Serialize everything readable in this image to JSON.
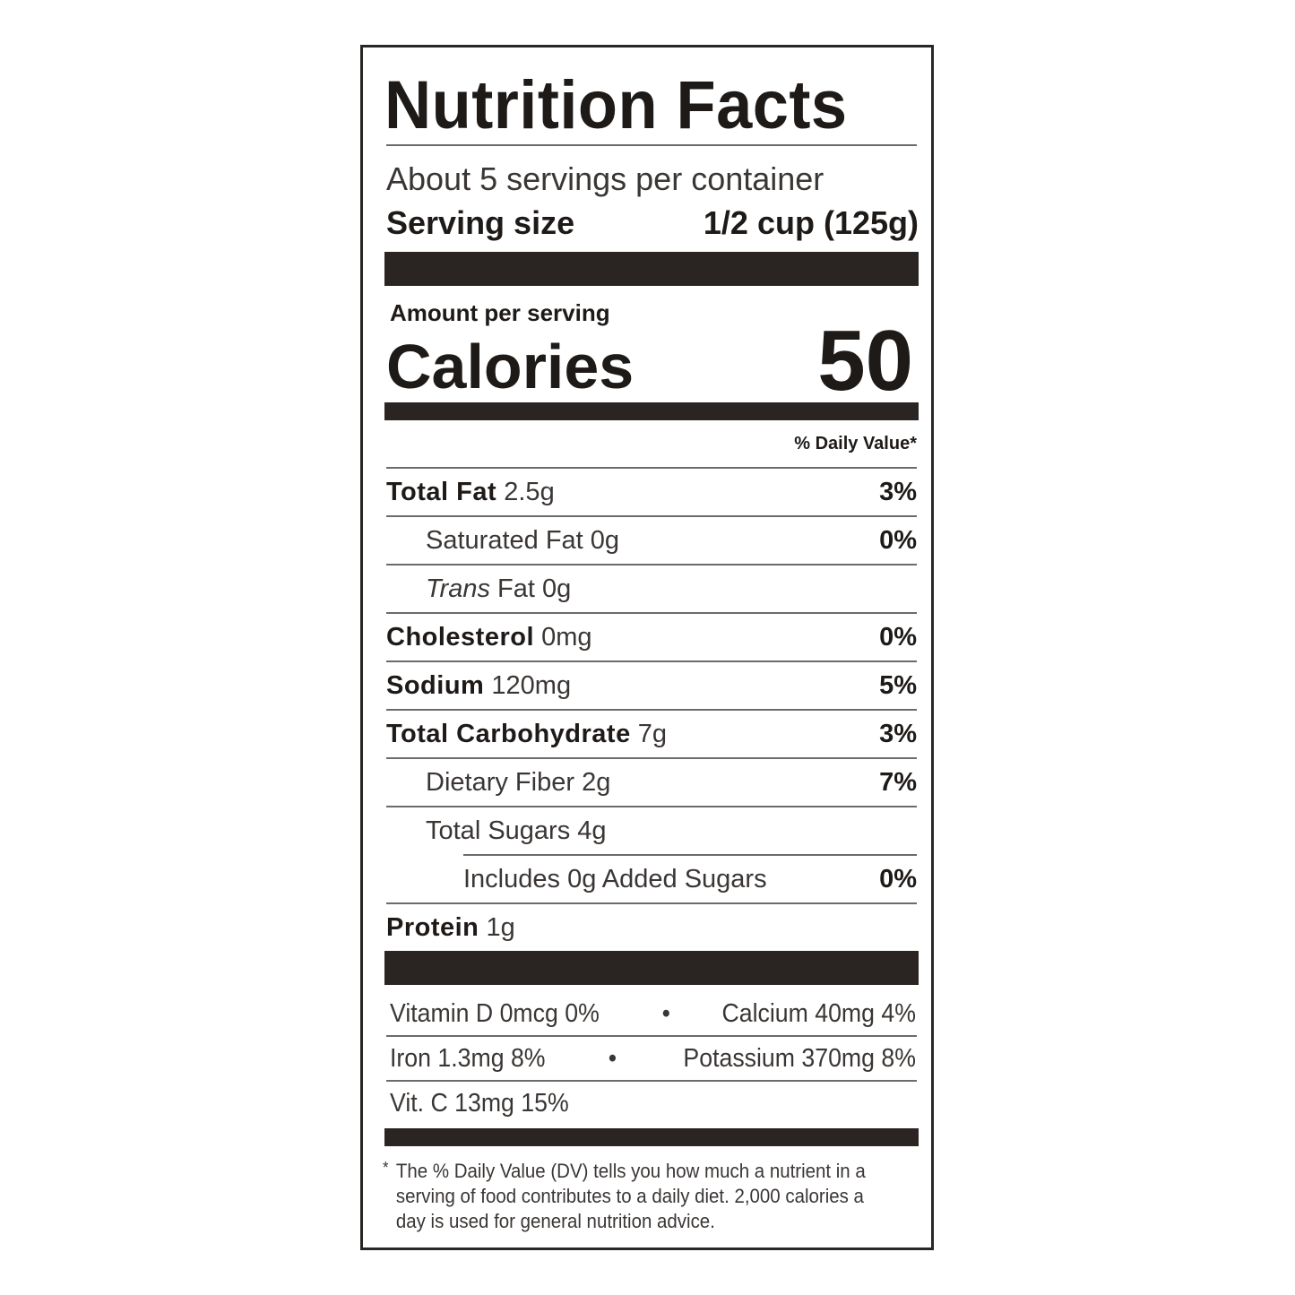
{
  "title": "Nutrition Facts",
  "servings_per_container": "About 5 servings per container",
  "serving_size": {
    "label": "Serving size",
    "value": "1/2 cup (125g)"
  },
  "amount_per_serving": "Amount per serving",
  "calories": {
    "label": "Calories",
    "value": "50"
  },
  "daily_value_header": "% Daily Value*",
  "nutrients": [
    {
      "name": "Total Fat",
      "amount": "2.5g",
      "dv": "3%",
      "bold": true,
      "indent": 0
    },
    {
      "name": "Saturated Fat",
      "amount": "0g",
      "dv": "0%",
      "bold": false,
      "indent": 1
    },
    {
      "name_italic": "Trans",
      "name": "Fat",
      "amount": "0g",
      "dv": "",
      "bold": false,
      "indent": 1
    },
    {
      "name": "Cholesterol",
      "amount": "0mg",
      "dv": "0%",
      "bold": true,
      "indent": 0
    },
    {
      "name": "Sodium",
      "amount": "120mg",
      "dv": "5%",
      "bold": true,
      "indent": 0
    },
    {
      "name": "Total Carbohydrate",
      "amount": "7g",
      "dv": "3%",
      "bold": true,
      "indent": 0
    },
    {
      "name": "Dietary Fiber",
      "amount": "2g",
      "dv": "7%",
      "bold": false,
      "indent": 1
    },
    {
      "name": "Total Sugars",
      "amount": "4g",
      "dv": "",
      "bold": false,
      "indent": 1
    },
    {
      "name": "Includes 0g Added Sugars",
      "amount": "",
      "dv": "0%",
      "bold": false,
      "indent": 2
    },
    {
      "name": "Protein",
      "amount": "1g",
      "dv": "",
      "bold": true,
      "indent": 0
    }
  ],
  "vitamins": [
    {
      "left": "Vitamin D 0mcg 0%",
      "sep": "•",
      "right": "Calcium 40mg 4%"
    },
    {
      "left": "Iron 1.3mg 8%",
      "sep": "•",
      "right": "Potassium 370mg 8%"
    },
    {
      "left": "Vit. C 13mg 15%",
      "sep": "",
      "right": ""
    }
  ],
  "footnote": {
    "marker": "*",
    "lines": [
      "The % Daily Value (DV) tells you how much a nutrient in a",
      "serving of food contributes to a daily diet. 2,000 calories a",
      "day is used for general nutrition advice."
    ]
  }
}
